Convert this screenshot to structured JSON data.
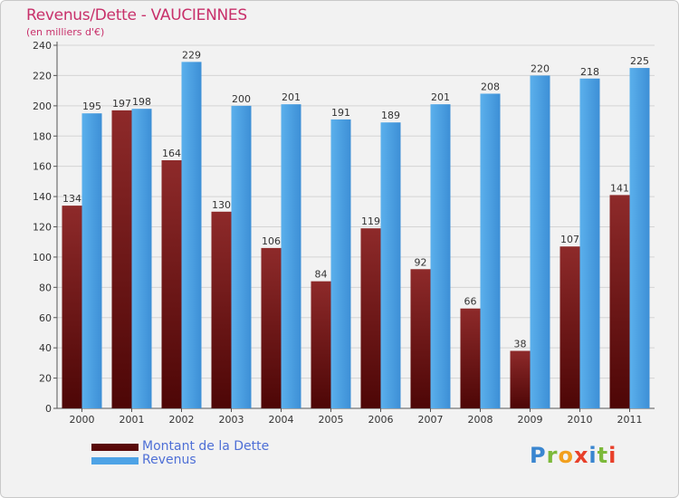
{
  "chart_data": {
    "type": "bar",
    "title": "Revenus/Dette - VAUCIENNES",
    "subtitle": "(en milliers d'€)",
    "xlabel": "",
    "ylabel": "",
    "categories": [
      "2000",
      "2001",
      "2002",
      "2003",
      "2004",
      "2005",
      "2006",
      "2007",
      "2008",
      "2009",
      "2010",
      "2011"
    ],
    "series": [
      {
        "name": "Montant de la Dette",
        "color": "#8b1f1f",
        "values": [
          134,
          197,
          164,
          130,
          106,
          84,
          119,
          92,
          66,
          38,
          107,
          141
        ]
      },
      {
        "name": "Revenus",
        "color": "#4ea3e6",
        "values": [
          195,
          198,
          229,
          200,
          201,
          191,
          189,
          201,
          208,
          220,
          218,
          225
        ]
      }
    ],
    "ylim": [
      0,
      240
    ],
    "yticks": [
      0,
      20,
      40,
      60,
      80,
      100,
      120,
      140,
      160,
      180,
      200,
      220,
      240
    ],
    "grid": true,
    "legend": "bottom-left"
  },
  "logo": {
    "letters": [
      {
        "char": "P",
        "color": "#3a86d0"
      },
      {
        "char": "r",
        "color": "#7cb93a"
      },
      {
        "char": "o",
        "color": "#f2a01e"
      },
      {
        "char": "x",
        "color": "#e8402a"
      },
      {
        "char": "i",
        "color": "#3a86d0"
      },
      {
        "char": "t",
        "color": "#7cb93a"
      },
      {
        "char": "i",
        "color": "#e8402a"
      }
    ]
  }
}
